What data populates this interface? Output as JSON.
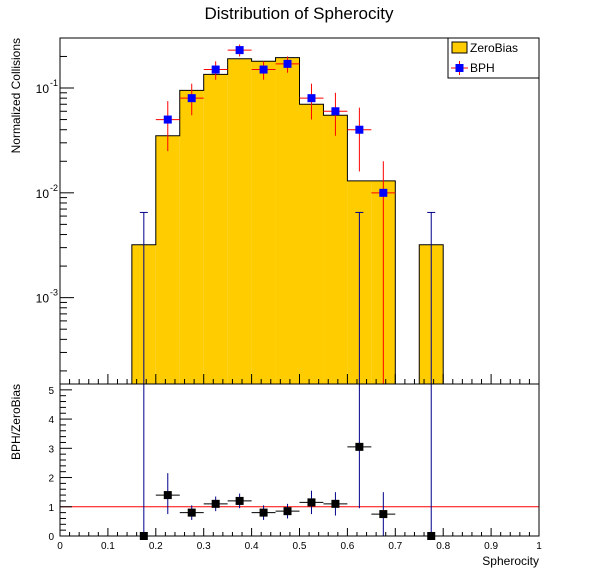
{
  "colors": {
    "zerobias_fill": "#ffcc00",
    "bph_marker": "#0000ff",
    "bph_error": "#ff0000",
    "ratio_marker": "#000000",
    "ratio_error": "#00008b",
    "reference_line": "#ff0000"
  },
  "chart_data": [
    {
      "type": "bar",
      "title": "Distribution of Spherocity",
      "ylabel": "Normalized Collisions",
      "y_scale": "log",
      "ylim": [
        0.00015,
        0.3
      ],
      "xlim": [
        0,
        1
      ],
      "y_tick_labels": [
        "10",
        "10",
        "10"
      ],
      "y_tick_exponents": [
        "-1",
        "-2",
        "-3"
      ],
      "legend": {
        "placement": "top-right",
        "entries": [
          "ZeroBias",
          "BPH"
        ]
      },
      "bin_edges": [
        0,
        0.05,
        0.1,
        0.15,
        0.2,
        0.25,
        0.3,
        0.35,
        0.4,
        0.45,
        0.5,
        0.55,
        0.6,
        0.65,
        0.7,
        0.75,
        0.8,
        0.85,
        0.9,
        0.95,
        1.0
      ],
      "series": [
        {
          "name": "ZeroBias",
          "kind": "histogram",
          "values": [
            0,
            0,
            0,
            0.0032,
            0.035,
            0.095,
            0.135,
            0.19,
            0.18,
            0.195,
            0.07,
            0.055,
            0.013,
            0.013,
            0,
            0.0032,
            0,
            0,
            0,
            0
          ]
        },
        {
          "name": "BPH",
          "kind": "points",
          "x": [
            0.225,
            0.275,
            0.325,
            0.375,
            0.425,
            0.475,
            0.525,
            0.575,
            0.625,
            0.675
          ],
          "y": [
            0.05,
            0.08,
            0.15,
            0.23,
            0.15,
            0.17,
            0.08,
            0.06,
            0.04,
            0.01
          ],
          "y_low": [
            0.025,
            0.055,
            0.12,
            0.2,
            0.12,
            0.14,
            0.05,
            0.035,
            0.016,
            0.00015
          ],
          "y_high": [
            0.075,
            0.11,
            0.18,
            0.26,
            0.18,
            0.2,
            0.11,
            0.09,
            0.065,
            0.02
          ]
        }
      ]
    },
    {
      "type": "scatter",
      "xlabel": "Spherocity",
      "ylabel": "BPH/ZeroBias",
      "xlim": [
        0,
        1
      ],
      "ylim": [
        0,
        5.2
      ],
      "x_ticks": [
        0,
        0.1,
        0.2,
        0.3,
        0.4,
        0.5,
        0.6,
        0.7,
        0.8,
        0.9,
        1
      ],
      "x_tick_labels": [
        "0",
        "0.1",
        "0.2",
        "0.3",
        "0.4",
        "0.5",
        "0.6",
        "0.7",
        "0.8",
        "0.9",
        "1"
      ],
      "y_ticks": [
        0,
        1,
        2,
        3,
        4,
        5
      ],
      "y_tick_labels": [
        "0",
        "1",
        "2",
        "3",
        "4",
        "5"
      ],
      "reference_line": 1,
      "series": [
        {
          "kind": "points",
          "x": [
            0.175,
            0.225,
            0.275,
            0.325,
            0.375,
            0.425,
            0.475,
            0.525,
            0.575,
            0.625,
            0.675,
            0.775
          ],
          "y": [
            0,
            1.4,
            0.8,
            1.1,
            1.2,
            0.8,
            0.85,
            1.15,
            1.1,
            3.05,
            0.75,
            0
          ],
          "y_low": [
            0,
            0.75,
            0.55,
            0.85,
            0.95,
            0.55,
            0.6,
            0.75,
            0.7,
            0.95,
            0,
            0
          ],
          "y_high": [
            5.2,
            2.15,
            1.05,
            1.35,
            1.45,
            1.05,
            1.1,
            1.55,
            1.5,
            5.2,
            1.5,
            5.2
          ]
        }
      ]
    }
  ]
}
